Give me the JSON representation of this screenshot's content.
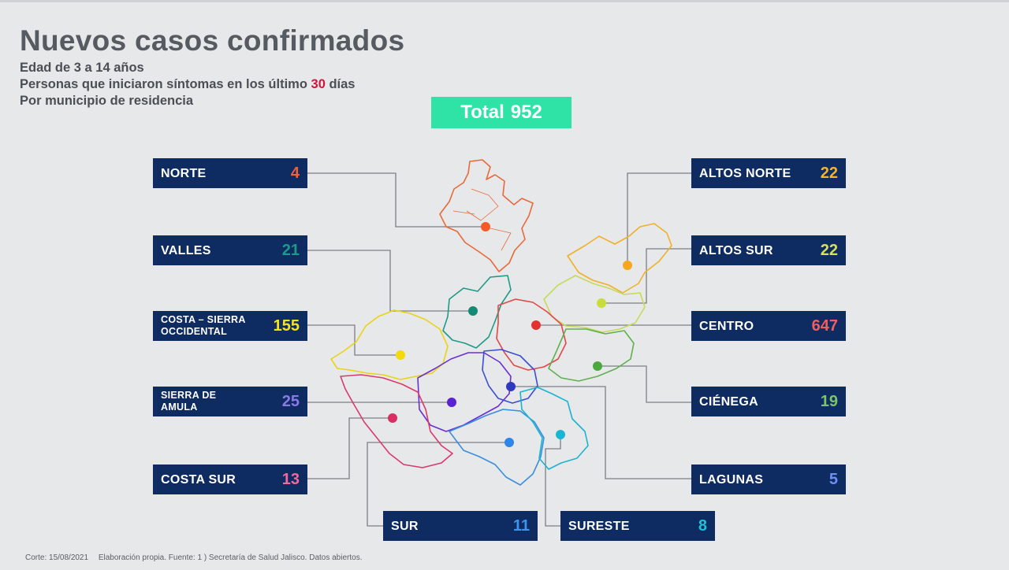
{
  "title": "Nuevos casos confirmados",
  "subtitle1": "Edad de 3 a 14 años",
  "subtitle2_a": "Personas que iniciaron síntomas en los último",
  "subtitle2_days": "30",
  "subtitle2_b": "días",
  "subtitle3": "Por municipio de residencia",
  "total": {
    "label": "Total",
    "value": "952"
  },
  "regions": {
    "norte": {
      "label": "NORTE",
      "value": "4",
      "color": "#f0603a"
    },
    "valles": {
      "label": "VALLES",
      "value": "21",
      "color": "#1e9a86"
    },
    "costa_sierra": {
      "label": "COSTA – SIERRA OCCIDENTAL",
      "value": "155",
      "color": "#f5e21e"
    },
    "sierra_amula": {
      "label": "SIERRA DE AMULA",
      "value": "25",
      "color": "#8b79e8"
    },
    "costa_sur": {
      "label": "COSTA SUR",
      "value": "13",
      "color": "#f06a9e"
    },
    "sur": {
      "label": "SUR",
      "value": "11",
      "color": "#3a96f0"
    },
    "sureste": {
      "label": "SURESTE",
      "value": "8",
      "color": "#1fc0d8"
    },
    "lagunas": {
      "label": "LAGUNAS",
      "value": "5",
      "color": "#6f8ff2"
    },
    "cienega": {
      "label": "CIÉNEGA",
      "value": "19",
      "color": "#7bc46a"
    },
    "centro": {
      "label": "CENTRO",
      "value": "647",
      "color": "#f05e5e"
    },
    "altos_sur": {
      "label": "ALTOS SUR",
      "value": "22",
      "color": "#d4e15a"
    },
    "altos_norte": {
      "label": "ALTOS NORTE",
      "value": "22",
      "color": "#f5b428"
    }
  },
  "footer": {
    "corte": "Corte: 15/08/2021",
    "fuente": "Elaboración propia. Fuente: 1 ) Secretaría de Salud Jalisco. Datos abiertos."
  }
}
